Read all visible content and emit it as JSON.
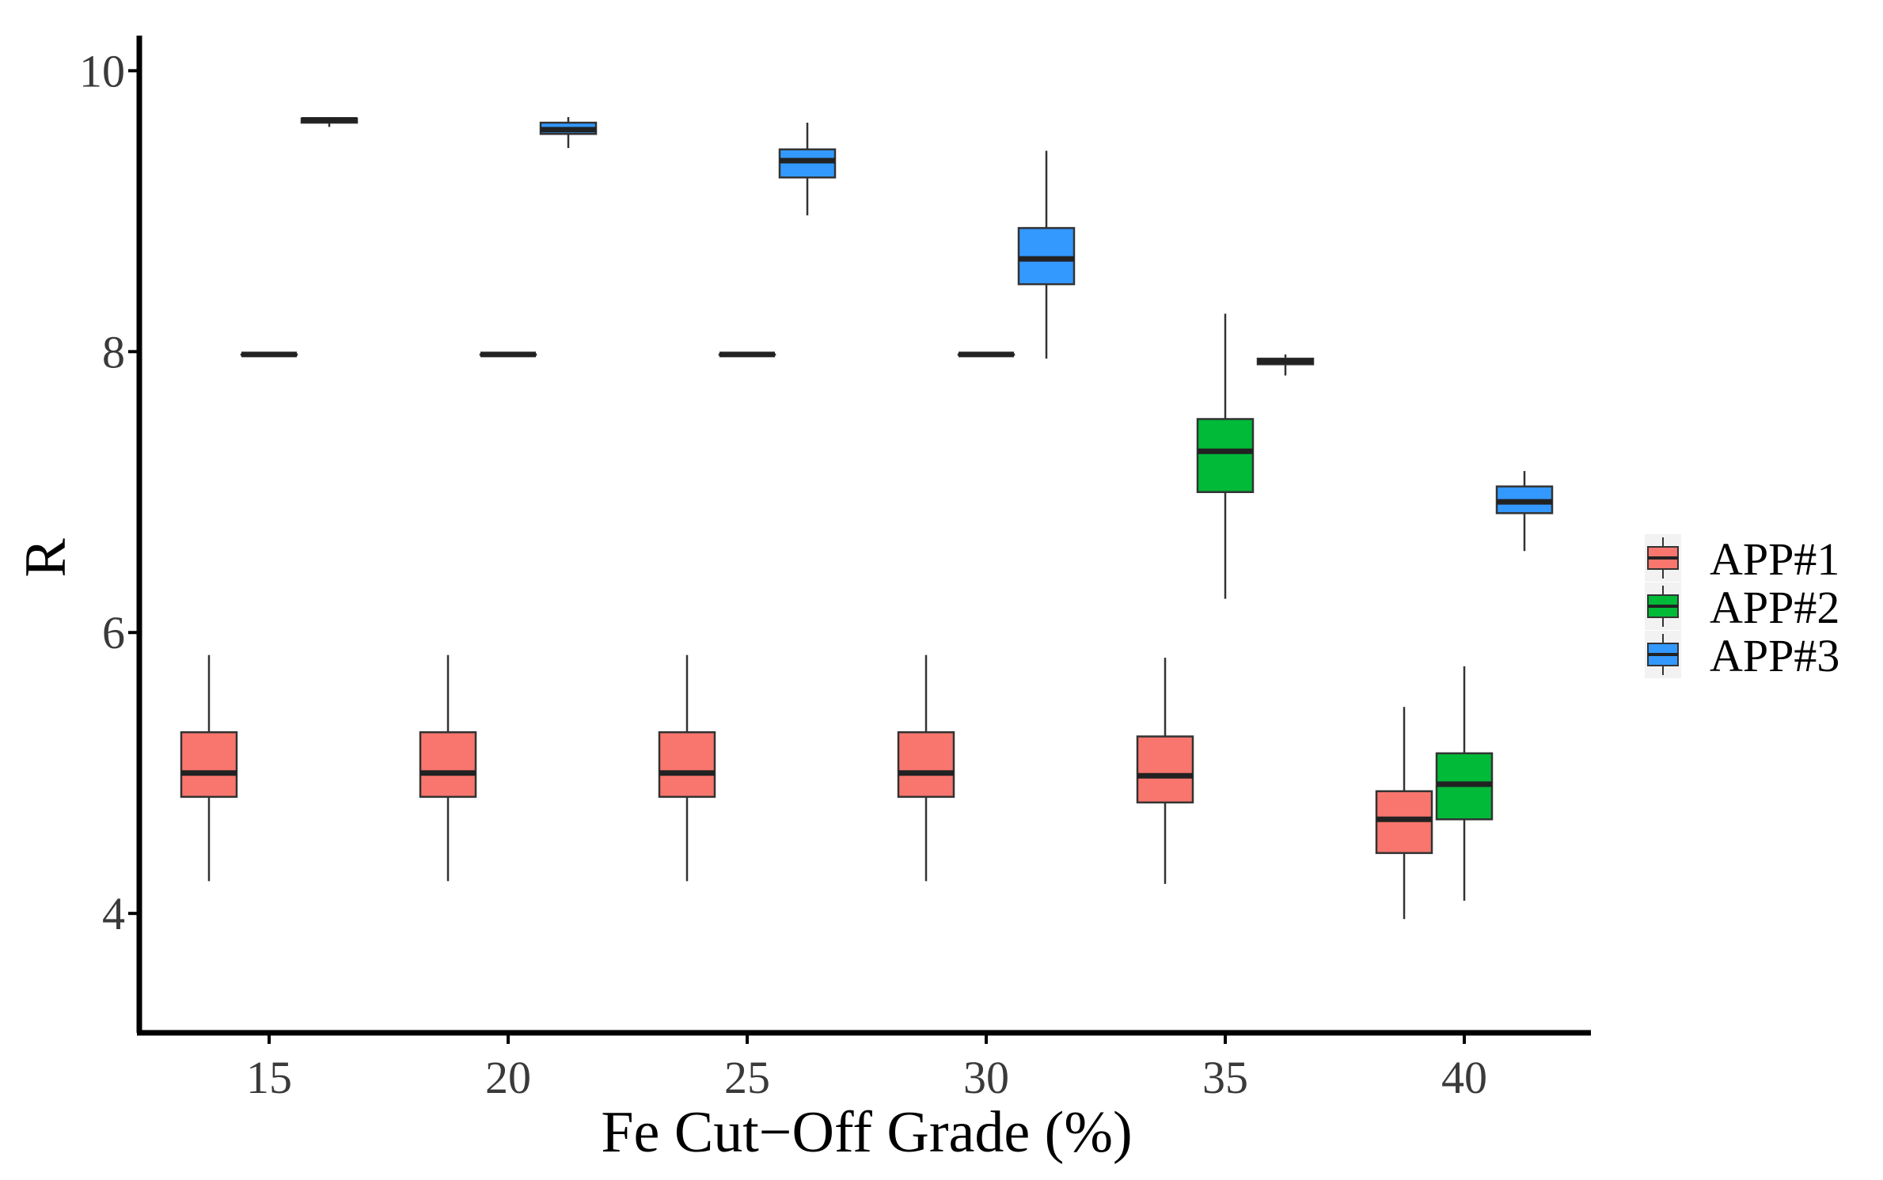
{
  "chart_data": {
    "type": "box",
    "xlabel": "Fe Cut−Off Grade (%)",
    "ylabel": "R",
    "categories": [
      "15",
      "20",
      "25",
      "30",
      "35",
      "40"
    ],
    "ylim": [
      3.15,
      10.25
    ],
    "yticks": [
      "4",
      "6",
      "8",
      "10"
    ],
    "grid": false,
    "legend_position": "right",
    "series": [
      {
        "name": "APP#1",
        "color": "#F8766D",
        "boxes": [
          {
            "min": 4.23,
            "q1": 4.83,
            "median": 5.0,
            "q3": 5.29,
            "max": 5.84
          },
          {
            "min": 4.23,
            "q1": 4.83,
            "median": 5.0,
            "q3": 5.29,
            "max": 5.84
          },
          {
            "min": 4.23,
            "q1": 4.83,
            "median": 5.0,
            "q3": 5.29,
            "max": 5.84
          },
          {
            "min": 4.23,
            "q1": 4.83,
            "median": 5.0,
            "q3": 5.29,
            "max": 5.84
          },
          {
            "min": 4.21,
            "q1": 4.79,
            "median": 4.98,
            "q3": 5.26,
            "max": 5.82
          },
          {
            "min": 3.96,
            "q1": 4.43,
            "median": 4.67,
            "q3": 4.87,
            "max": 5.47
          }
        ]
      },
      {
        "name": "APP#2",
        "color": "#00BA38",
        "boxes": [
          {
            "min": 7.98,
            "q1": 7.98,
            "median": 7.98,
            "q3": 7.98,
            "max": 7.98
          },
          {
            "min": 7.98,
            "q1": 7.98,
            "median": 7.98,
            "q3": 7.98,
            "max": 7.98
          },
          {
            "min": 7.98,
            "q1": 7.98,
            "median": 7.98,
            "q3": 7.98,
            "max": 7.98
          },
          {
            "min": 7.98,
            "q1": 7.98,
            "median": 7.98,
            "q3": 7.98,
            "max": 7.98
          },
          {
            "min": 6.24,
            "q1": 7.0,
            "median": 7.29,
            "q3": 7.52,
            "max": 8.27
          },
          {
            "min": 4.09,
            "q1": 4.67,
            "median": 4.92,
            "q3": 5.14,
            "max": 5.76
          }
        ]
      },
      {
        "name": "APP#3",
        "color": "#3399FF",
        "boxes": [
          {
            "min": 9.6,
            "q1": 9.63,
            "median": 9.65,
            "q3": 9.66,
            "max": 9.67
          },
          {
            "min": 9.45,
            "q1": 9.55,
            "median": 9.58,
            "q3": 9.63,
            "max": 9.67
          },
          {
            "min": 8.97,
            "q1": 9.24,
            "median": 9.36,
            "q3": 9.44,
            "max": 9.63
          },
          {
            "min": 7.95,
            "q1": 8.48,
            "median": 8.66,
            "q3": 8.88,
            "max": 9.43
          },
          {
            "min": 7.83,
            "q1": 7.91,
            "median": 7.93,
            "q3": 7.95,
            "max": 7.98
          },
          {
            "min": 6.58,
            "q1": 6.85,
            "median": 6.93,
            "q3": 7.04,
            "max": 7.15
          }
        ]
      }
    ]
  }
}
